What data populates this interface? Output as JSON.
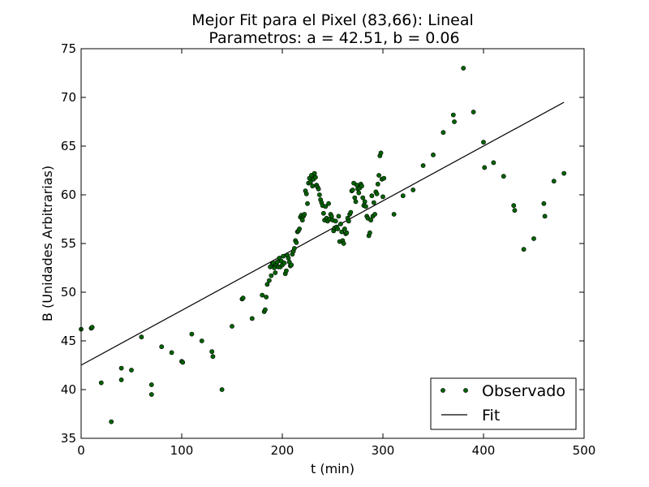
{
  "chart_data": {
    "type": "scatter",
    "title_line1": "Mejor Fit para el Pixel (83,66): Lineal",
    "title_line2": "Parametros: a = 42.51, b = 0.06",
    "xlabel": "t (min)",
    "ylabel": "B (Unidades Arbitrarias)",
    "xlim": [
      0,
      500
    ],
    "ylim": [
      35,
      75
    ],
    "xticks": [
      0,
      100,
      200,
      300,
      400,
      500
    ],
    "yticks": [
      35,
      40,
      45,
      50,
      55,
      60,
      65,
      70,
      75
    ],
    "grid": false,
    "legend_position": "lower-right",
    "series": [
      {
        "name": "Observado",
        "style": "points",
        "color": "#006400",
        "points": [
          [
            0,
            46.2
          ],
          [
            10,
            46.3
          ],
          [
            11,
            46.4
          ],
          [
            20,
            40.7
          ],
          [
            30,
            36.7
          ],
          [
            40,
            42.2
          ],
          [
            40,
            41.0
          ],
          [
            50,
            42.0
          ],
          [
            60,
            45.4
          ],
          [
            70,
            40.5
          ],
          [
            70,
            39.5
          ],
          [
            80,
            44.4
          ],
          [
            90,
            43.8
          ],
          [
            100,
            42.9
          ],
          [
            101,
            42.8
          ],
          [
            110,
            45.7
          ],
          [
            120,
            45.0
          ],
          [
            130,
            43.9
          ],
          [
            131,
            43.4
          ],
          [
            140,
            40.0
          ],
          [
            150,
            46.5
          ],
          [
            160,
            49.3
          ],
          [
            161,
            49.4
          ],
          [
            170,
            47.3
          ],
          [
            180,
            49.7
          ],
          [
            182,
            48.0
          ],
          [
            183,
            48.2
          ],
          [
            184,
            49.5
          ],
          [
            185,
            50.8
          ],
          [
            187,
            51.2
          ],
          [
            188,
            52.6
          ],
          [
            189,
            51.7
          ],
          [
            190,
            52.9
          ],
          [
            191,
            53.0
          ],
          [
            192,
            52.5
          ],
          [
            193,
            52.0
          ],
          [
            194,
            52.8
          ],
          [
            195,
            53.1
          ],
          [
            196,
            52.6
          ],
          [
            197,
            53.5
          ],
          [
            198,
            52.6
          ],
          [
            199,
            53.2
          ],
          [
            200,
            52.8
          ],
          [
            201,
            53.7
          ],
          [
            202,
            53.0
          ],
          [
            203,
            51.9
          ],
          [
            204,
            52.2
          ],
          [
            205,
            53.8
          ],
          [
            206,
            53.5
          ],
          [
            207,
            53.1
          ],
          [
            208,
            52.7
          ],
          [
            209,
            52.8
          ],
          [
            210,
            53.9
          ],
          [
            211,
            54.2
          ],
          [
            212,
            54.5
          ],
          [
            213,
            55.3
          ],
          [
            214,
            55.1
          ],
          [
            215,
            56.2
          ],
          [
            216,
            56.3
          ],
          [
            217,
            56.5
          ],
          [
            218,
            57.7
          ],
          [
            219,
            57.9
          ],
          [
            220,
            57.4
          ],
          [
            221,
            57.8
          ],
          [
            222,
            58.0
          ],
          [
            223,
            60.4
          ],
          [
            224,
            60.1
          ],
          [
            225,
            59.1
          ],
          [
            226,
            61.2
          ],
          [
            227,
            61.7
          ],
          [
            228,
            61.3
          ],
          [
            229,
            62.0
          ],
          [
            230,
            60.9
          ],
          [
            231,
            61.6
          ],
          [
            232,
            62.2
          ],
          [
            233,
            61.8
          ],
          [
            234,
            61.0
          ],
          [
            235,
            60.8
          ],
          [
            236,
            60.6
          ],
          [
            237,
            60.0
          ],
          [
            238,
            59.5
          ],
          [
            239,
            59.2
          ],
          [
            240,
            58.9
          ],
          [
            241,
            58.1
          ],
          [
            242,
            57.4
          ],
          [
            243,
            58.8
          ],
          [
            244,
            57.6
          ],
          [
            245,
            57.3
          ],
          [
            246,
            59.1
          ],
          [
            247,
            57.5
          ],
          [
            248,
            58.0
          ],
          [
            249,
            57.8
          ],
          [
            250,
            57.4
          ],
          [
            251,
            56.3
          ],
          [
            252,
            56.6
          ],
          [
            253,
            57.3
          ],
          [
            254,
            56.7
          ],
          [
            255,
            56.5
          ],
          [
            256,
            57.8
          ],
          [
            257,
            55.2
          ],
          [
            258,
            57.0
          ],
          [
            259,
            56.2
          ],
          [
            260,
            55.3
          ],
          [
            261,
            55.0
          ],
          [
            262,
            56.5
          ],
          [
            263,
            56.0
          ],
          [
            264,
            56.1
          ],
          [
            265,
            57.6
          ],
          [
            266,
            57.3
          ],
          [
            267,
            58.0
          ],
          [
            268,
            58.2
          ],
          [
            269,
            60.4
          ],
          [
            270,
            60.5
          ],
          [
            271,
            61.2
          ],
          [
            272,
            59.7
          ],
          [
            273,
            59.3
          ],
          [
            274,
            61.0
          ],
          [
            275,
            60.6
          ],
          [
            276,
            60.2
          ],
          [
            277,
            60.7
          ],
          [
            278,
            61.1
          ],
          [
            279,
            60.9
          ],
          [
            280,
            59.7
          ],
          [
            281,
            58.9
          ],
          [
            282,
            59.3
          ],
          [
            283,
            58.8
          ],
          [
            284,
            57.8
          ],
          [
            285,
            57.6
          ],
          [
            286,
            55.8
          ],
          [
            287,
            56.1
          ],
          [
            288,
            57.4
          ],
          [
            289,
            59.9
          ],
          [
            290,
            57.8
          ],
          [
            291,
            59.2
          ],
          [
            292,
            58.0
          ],
          [
            293,
            60.3
          ],
          [
            294,
            60.1
          ],
          [
            295,
            61.1
          ],
          [
            296,
            62.0
          ],
          [
            297,
            64.0
          ],
          [
            298,
            64.3
          ],
          [
            299,
            61.6
          ],
          [
            300,
            59.8
          ],
          [
            301,
            61.7
          ],
          [
            311,
            58.0
          ],
          [
            320,
            59.9
          ],
          [
            330,
            60.5
          ],
          [
            340,
            63.0
          ],
          [
            350,
            64.1
          ],
          [
            360,
            66.4
          ],
          [
            370,
            68.2
          ],
          [
            371,
            67.5
          ],
          [
            380,
            73.0
          ],
          [
            390,
            68.5
          ],
          [
            400,
            65.4
          ],
          [
            401,
            62.8
          ],
          [
            410,
            63.3
          ],
          [
            420,
            61.9
          ],
          [
            430,
            58.9
          ],
          [
            431,
            58.4
          ],
          [
            440,
            54.4
          ],
          [
            450,
            55.5
          ],
          [
            460,
            59.1
          ],
          [
            461,
            57.8
          ],
          [
            470,
            61.4
          ],
          [
            480,
            62.2
          ]
        ]
      },
      {
        "name": "Fit",
        "style": "line",
        "color": "#000000",
        "a": 42.51,
        "b": 0.06,
        "points": [
          [
            0,
            42.51
          ],
          [
            480,
            69.5
          ]
        ]
      }
    ]
  }
}
